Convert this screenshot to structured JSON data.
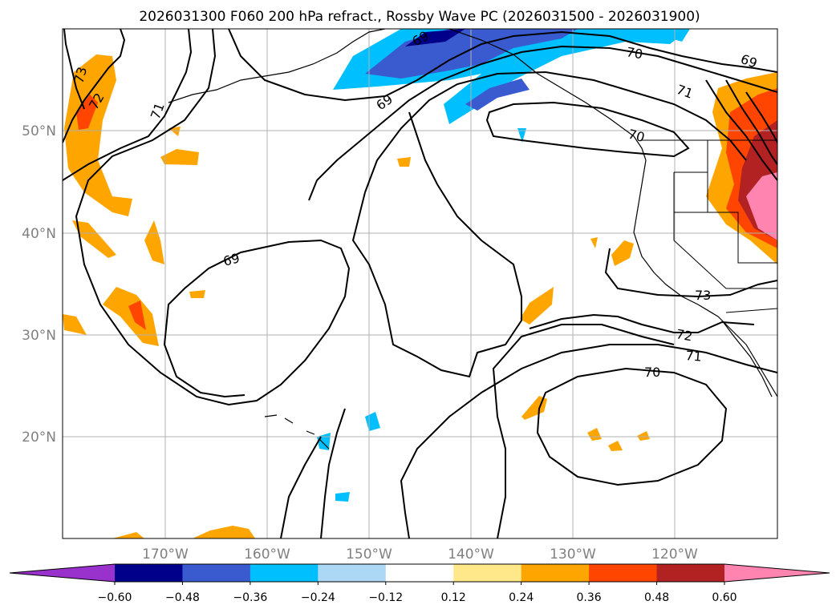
{
  "title": "2026031300 F060 200 hPa refract., Rossby Wave PC (2026031500 - 2026031900)",
  "map": {
    "lon_range": [
      -180,
      -110
    ],
    "lat_range": [
      10,
      60
    ],
    "lat_ticks": [
      "20°N",
      "30°N",
      "40°N",
      "50°N"
    ],
    "lon_ticks": [
      "170°W",
      "160°W",
      "150°W",
      "140°W",
      "130°W",
      "120°W"
    ],
    "grid": true
  },
  "contour_labels": [
    "73",
    "72",
    "71",
    "69",
    "69",
    "69",
    "69",
    "70",
    "71",
    "70",
    "73",
    "72",
    "71",
    "70",
    "69"
  ],
  "colorbar": {
    "ticks": [
      "−0.60",
      "−0.48",
      "−0.36",
      "−0.24",
      "−0.12",
      "0.12",
      "0.24",
      "0.36",
      "0.48",
      "0.60"
    ],
    "colors": [
      "#9932cc",
      "#00008b",
      "#3a5bd0",
      "#00bfff",
      "#add8f5",
      "#ffffff",
      "#ffe88a",
      "#ffa500",
      "#ff4500",
      "#b22222",
      "#ff85b0"
    ],
    "extend": "both"
  }
}
